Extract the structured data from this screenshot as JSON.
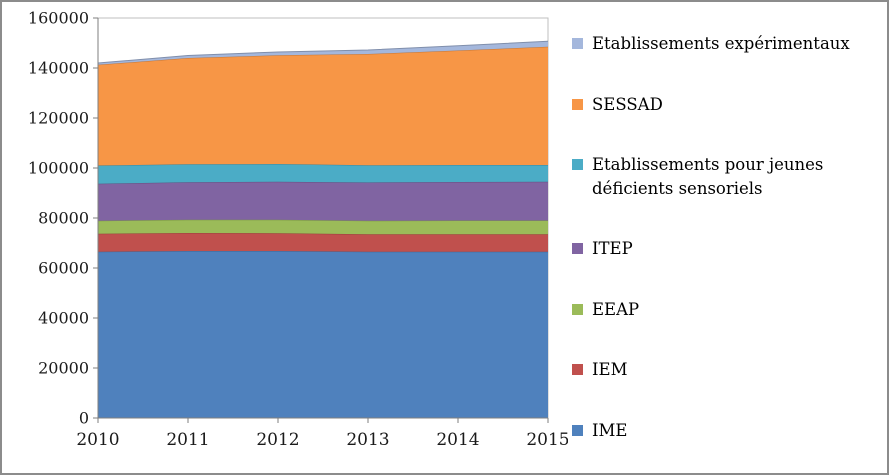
{
  "chart_data": {
    "type": "area",
    "stacked": true,
    "title": "",
    "xlabel": "",
    "ylabel": "",
    "categories": [
      "2010",
      "2011",
      "2012",
      "2013",
      "2014",
      "2015"
    ],
    "series": [
      {
        "name": "IME",
        "color": "#4F81BD",
        "values": [
          66500,
          66800,
          66800,
          66500,
          66500,
          66500
        ]
      },
      {
        "name": "IEM",
        "color": "#C0504D",
        "values": [
          7200,
          7200,
          7100,
          7000,
          7000,
          7000
        ]
      },
      {
        "name": "EEAP",
        "color": "#9BBB59",
        "values": [
          5200,
          5300,
          5400,
          5400,
          5500,
          5500
        ]
      },
      {
        "name": "ITEP",
        "color": "#8064A2",
        "values": [
          14800,
          15000,
          15200,
          15300,
          15400,
          15500
        ]
      },
      {
        "name": "Etablissements pour jeunes déficients sensoriels",
        "color": "#4BACC6",
        "values": [
          7300,
          7200,
          7100,
          6900,
          6800,
          6700
        ]
      },
      {
        "name": "SESSAD",
        "color": "#F79646",
        "values": [
          40300,
          42500,
          43500,
          44500,
          45800,
          47300
        ]
      },
      {
        "name": "Etablissements expérimentaux",
        "color": "#A4B7DC",
        "values": [
          700,
          1000,
          1300,
          1600,
          1900,
          2200
        ]
      }
    ],
    "ylim": [
      0,
      160000
    ],
    "y_tick_step": 20000,
    "grid": false,
    "legend_position": "right",
    "legend_order": "top-of-stack-first",
    "axis_color": "#7f7f7f",
    "plot_border_color": "#bfbfbf"
  }
}
